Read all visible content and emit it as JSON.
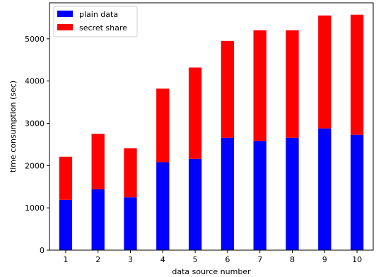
{
  "chart_data": {
    "type": "bar",
    "stacked": true,
    "categories": [
      "1",
      "2",
      "3",
      "4",
      "5",
      "6",
      "7",
      "8",
      "9",
      "10"
    ],
    "series": [
      {
        "name": "plain data",
        "color": "#0000ff",
        "values": [
          1190,
          1440,
          1250,
          2080,
          2160,
          2660,
          2580,
          2660,
          2880,
          2730
        ]
      },
      {
        "name": "secret share",
        "color": "#ff0000",
        "values": [
          1020,
          1310,
          1160,
          1740,
          2160,
          2290,
          2620,
          2540,
          2670,
          2840
        ]
      }
    ],
    "xlabel": "data source number",
    "ylabel": "time consumption (sec)",
    "ylim": [
      0,
      5850
    ],
    "yticks": [
      0,
      1000,
      2000,
      3000,
      4000,
      5000
    ],
    "ytick_labels": [
      "0",
      "1000",
      "2000",
      "3000",
      "4000",
      "5000"
    ],
    "grid": false,
    "legend_position": "top-left"
  }
}
